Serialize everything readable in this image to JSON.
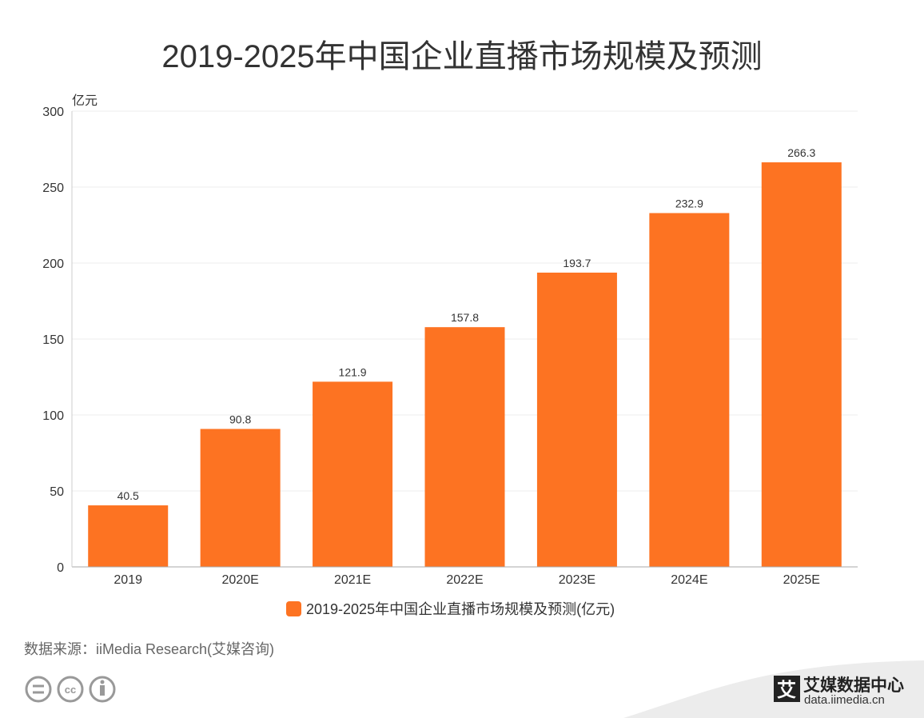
{
  "chart_data": {
    "type": "bar",
    "title": "2019-2025年中国企业直播市场规模及预测",
    "ylabel": "亿元",
    "xlabel": "",
    "categories": [
      "2019",
      "2020E",
      "2021E",
      "2022E",
      "2023E",
      "2024E",
      "2025E"
    ],
    "values": [
      40.5,
      90.8,
      121.9,
      157.8,
      193.7,
      232.9,
      266.3
    ],
    "value_labels": [
      "40.5",
      "90.8",
      "121.9",
      "157.8",
      "193.7",
      "232.9",
      "266.3"
    ],
    "ylim": [
      0,
      300
    ],
    "yticks": [
      0,
      50,
      100,
      150,
      200,
      250,
      300
    ],
    "grid": true,
    "legend": {
      "position": "bottom-center",
      "entries": [
        "2019-2025年中国企业直播市场规模及预测(亿元)"
      ]
    },
    "bar_color": "#FD7322"
  },
  "source": "数据来源：iiMedia Research(艾媒咨询)",
  "logo": {
    "mark": "艾",
    "name": "艾媒数据中心",
    "url": "data.iimedia.cn"
  }
}
